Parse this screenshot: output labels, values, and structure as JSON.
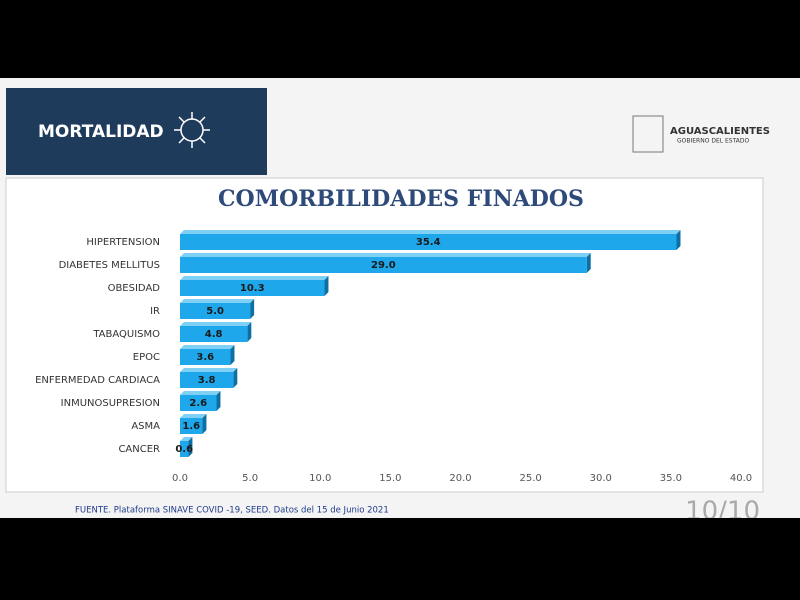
{
  "header": {
    "section": "MORTALIDAD",
    "state": "AGUASCALIENTES",
    "government": "GOBIERNO DEL ESTADO"
  },
  "chart_data": {
    "type": "hbar",
    "title": "COMORBILIDADES FINADOS",
    "categories": [
      "HIPERTENSION",
      "DIABETES MELLITUS",
      "OBESIDAD",
      "IR",
      "TABAQUISMO",
      "EPOC",
      "ENFERMEDAD CARDIACA",
      "INMUNOSUPRESION",
      "ASMA",
      "CANCER"
    ],
    "values": [
      35.4,
      29.0,
      10.3,
      5.0,
      4.8,
      3.6,
      3.8,
      2.6,
      1.6,
      0.6
    ],
    "value_labels": [
      "35.4",
      "29.0",
      "10.3",
      "5.0",
      "4.8",
      "3.6",
      "3.8",
      "2.6",
      "1.6",
      "0.6"
    ],
    "color": "#1ea7ea",
    "xlim": [
      0,
      40
    ],
    "xticks": [
      {
        "value": 0,
        "label": "0.0"
      },
      {
        "value": 5,
        "label": "5.0"
      },
      {
        "value": 10,
        "label": "10.0"
      },
      {
        "value": 15,
        "label": "15.0"
      },
      {
        "value": 20,
        "label": "20.0"
      },
      {
        "value": 25,
        "label": "25.0"
      },
      {
        "value": 30,
        "label": "30.0"
      },
      {
        "value": 35,
        "label": "35.0"
      },
      {
        "value": 40,
        "label": "40.0"
      }
    ]
  },
  "footer": {
    "source": "FUENTE. Plataforma SINAVE COVID -19, SEED. Datos del 15 de Junio 2021",
    "page": "10/10"
  }
}
